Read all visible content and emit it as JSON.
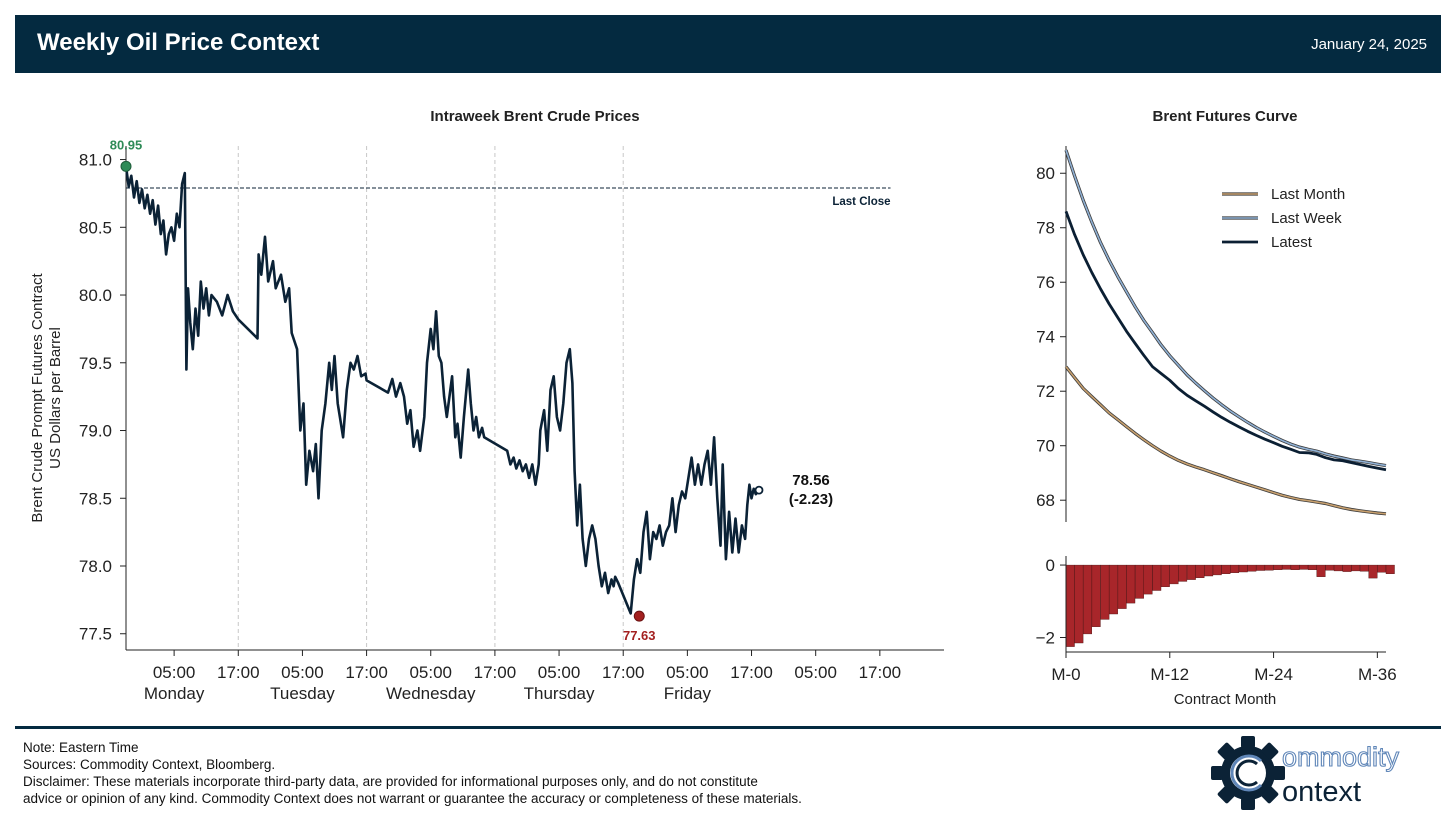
{
  "header": {
    "title": "Weekly Oil Price Context",
    "date": "January 24, 2025"
  },
  "chart_data": [
    {
      "type": "line",
      "title": "Intraweek Brent Crude Prices",
      "ylabel": [
        "Brent Crude Prompt Futures Contract",
        "US Dollars per Barrel"
      ],
      "ylim": [
        77.38,
        81.1
      ],
      "yticks": [
        81.0,
        80.5,
        80.0,
        79.5,
        79.0,
        78.5,
        78.0,
        77.5
      ],
      "ytick_labels": [
        "81.0",
        "80.5",
        "80.0",
        "79.5",
        "79.0",
        "78.5",
        "78.0",
        "77.5"
      ],
      "x_unit": "hours since Monday 00:00 ET",
      "xlim": [
        -4,
        149
      ],
      "xticks": [
        5,
        17,
        29,
        41,
        53,
        65,
        77,
        89,
        101,
        113,
        125,
        137
      ],
      "xtick_labels": [
        "05:00",
        "17:00",
        "05:00",
        "17:00",
        "05:00",
        "17:00",
        "05:00",
        "17:00",
        "05:00",
        "17:00",
        "05:00",
        "17:00"
      ],
      "day_labels": [
        {
          "x": 5,
          "label": "Monday"
        },
        {
          "x": 29,
          "label": "Tuesday"
        },
        {
          "x": 53,
          "label": "Wednesday"
        },
        {
          "x": 77,
          "label": "Thursday"
        },
        {
          "x": 101,
          "label": "Friday"
        }
      ],
      "day_dividers": [
        17,
        41,
        65,
        89
      ],
      "grid": "vertical dashed at 17:00",
      "last_close": {
        "value": 80.79,
        "label": "Last Close"
      },
      "high": {
        "x": -4,
        "value": 80.95,
        "label": "80.95",
        "color": "#2e8b57"
      },
      "low": {
        "x": 92,
        "value": 77.63,
        "label": "77.63",
        "color": "#a32020"
      },
      "latest": {
        "label_value": "78.56",
        "label_change": "(-2.23)"
      },
      "series": [
        {
          "color": "#0b2236",
          "points": [
            [
              -4,
              80.95
            ],
            [
              -3.5,
              80.8
            ],
            [
              -3,
              80.88
            ],
            [
              -2.5,
              80.72
            ],
            [
              -2,
              80.84
            ],
            [
              -1.5,
              80.68
            ],
            [
              -1,
              80.78
            ],
            [
              -0.5,
              80.64
            ],
            [
              0,
              80.74
            ],
            [
              0.5,
              80.6
            ],
            [
              1,
              80.7
            ],
            [
              1.5,
              80.52
            ],
            [
              2,
              80.66
            ],
            [
              2.5,
              80.45
            ],
            [
              3,
              80.55
            ],
            [
              3.5,
              80.3
            ],
            [
              4,
              80.45
            ],
            [
              4.5,
              80.5
            ],
            [
              5,
              80.4
            ],
            [
              5.5,
              80.6
            ],
            [
              6,
              80.5
            ],
            [
              6.5,
              80.82
            ],
            [
              7,
              80.9
            ],
            [
              7.3,
              79.45
            ],
            [
              7.6,
              80.05
            ],
            [
              8,
              79.8
            ],
            [
              8.5,
              79.6
            ],
            [
              9,
              79.9
            ],
            [
              9.5,
              79.7
            ],
            [
              10,
              80.1
            ],
            [
              10.5,
              79.9
            ],
            [
              11,
              80.05
            ],
            [
              11.5,
              79.85
            ],
            [
              12,
              80.0
            ],
            [
              13,
              79.95
            ],
            [
              14,
              79.85
            ],
            [
              15,
              80.0
            ],
            [
              16,
              79.88
            ],
            [
              17,
              79.82
            ],
            [
              20.6,
              79.68
            ],
            [
              20.8,
              80.3
            ],
            [
              21.3,
              80.15
            ],
            [
              22,
              80.43
            ],
            [
              22.6,
              80.1
            ],
            [
              23.5,
              80.25
            ],
            [
              24,
              80.05
            ],
            [
              25,
              80.15
            ],
            [
              25.8,
              79.95
            ],
            [
              26.5,
              80.05
            ],
            [
              27,
              79.72
            ],
            [
              28,
              79.6
            ],
            [
              28.6,
              79.0
            ],
            [
              29.2,
              79.2
            ],
            [
              29.7,
              78.6
            ],
            [
              30.3,
              78.85
            ],
            [
              31,
              78.7
            ],
            [
              31.5,
              78.9
            ],
            [
              32,
              78.5
            ],
            [
              32.6,
              79.0
            ],
            [
              33.3,
              79.2
            ],
            [
              34,
              79.5
            ],
            [
              34.5,
              79.3
            ],
            [
              35,
              79.55
            ],
            [
              35.6,
              79.2
            ],
            [
              36,
              79.1
            ],
            [
              36.6,
              78.95
            ],
            [
              37.3,
              79.3
            ],
            [
              38,
              79.5
            ],
            [
              38.6,
              79.45
            ],
            [
              39.3,
              79.55
            ],
            [
              40,
              79.4
            ],
            [
              40.8,
              79.42
            ],
            [
              41,
              79.37
            ],
            [
              45,
              79.28
            ],
            [
              45.8,
              79.38
            ],
            [
              46.5,
              79.25
            ],
            [
              47.3,
              79.35
            ],
            [
              48,
              79.25
            ],
            [
              48.6,
              79.05
            ],
            [
              49.2,
              79.15
            ],
            [
              49.8,
              78.88
            ],
            [
              50.5,
              79.0
            ],
            [
              51,
              78.85
            ],
            [
              51.8,
              79.1
            ],
            [
              52.3,
              79.5
            ],
            [
              53,
              79.75
            ],
            [
              53.5,
              79.6
            ],
            [
              54,
              79.88
            ],
            [
              54.5,
              79.55
            ],
            [
              55,
              79.5
            ],
            [
              55.5,
              79.25
            ],
            [
              56,
              79.1
            ],
            [
              57,
              79.4
            ],
            [
              57.6,
              78.95
            ],
            [
              58,
              79.05
            ],
            [
              58.6,
              78.8
            ],
            [
              59.2,
              79.1
            ],
            [
              60,
              79.45
            ],
            [
              60.5,
              79.2
            ],
            [
              61,
              79.0
            ],
            [
              61.5,
              79.1
            ],
            [
              62,
              78.95
            ],
            [
              62.6,
              79.02
            ],
            [
              63,
              78.95
            ],
            [
              67.3,
              78.85
            ],
            [
              67.9,
              78.75
            ],
            [
              68.5,
              78.8
            ],
            [
              69,
              78.72
            ],
            [
              69.6,
              78.78
            ],
            [
              70.2,
              78.7
            ],
            [
              70.8,
              78.75
            ],
            [
              71.4,
              78.65
            ],
            [
              72,
              78.75
            ],
            [
              72.6,
              78.6
            ],
            [
              73.2,
              78.75
            ],
            [
              73.5,
              79.0
            ],
            [
              74.2,
              79.15
            ],
            [
              74.8,
              78.85
            ],
            [
              75.4,
              79.3
            ],
            [
              76,
              79.4
            ],
            [
              76.6,
              79.1
            ],
            [
              77.2,
              79.0
            ],
            [
              77.8,
              79.2
            ],
            [
              78.4,
              79.5
            ],
            [
              79,
              79.6
            ],
            [
              79.5,
              79.35
            ],
            [
              79.9,
              78.7
            ],
            [
              80.4,
              78.3
            ],
            [
              80.9,
              78.6
            ],
            [
              81.4,
              78.2
            ],
            [
              82,
              78.0
            ],
            [
              82.6,
              78.2
            ],
            [
              83.2,
              78.3
            ],
            [
              83.8,
              78.2
            ],
            [
              84.4,
              78.0
            ],
            [
              85,
              77.85
            ],
            [
              85.6,
              77.95
            ],
            [
              86.2,
              77.8
            ],
            [
              86.8,
              77.9
            ],
            [
              87.2,
              77.85
            ],
            [
              87.5,
              77.92
            ],
            [
              88,
              77.88
            ],
            [
              90.4,
              77.65
            ],
            [
              91,
              77.9
            ],
            [
              91.6,
              78.05
            ],
            [
              92.2,
              77.95
            ],
            [
              92.8,
              78.25
            ],
            [
              93.4,
              78.4
            ],
            [
              94,
              78.05
            ],
            [
              94.6,
              78.25
            ],
            [
              95.2,
              78.2
            ],
            [
              95.8,
              78.3
            ],
            [
              96.4,
              78.15
            ],
            [
              97,
              78.25
            ],
            [
              97.6,
              78.3
            ],
            [
              98.2,
              78.5
            ],
            [
              98.8,
              78.25
            ],
            [
              99.4,
              78.45
            ],
            [
              100,
              78.55
            ],
            [
              100.6,
              78.5
            ],
            [
              101.2,
              78.65
            ],
            [
              101.8,
              78.8
            ],
            [
              102.4,
              78.6
            ],
            [
              103,
              78.75
            ],
            [
              103.6,
              78.6
            ],
            [
              104.2,
              78.75
            ],
            [
              104.8,
              78.85
            ],
            [
              105.4,
              78.6
            ],
            [
              106,
              78.95
            ],
            [
              106.6,
              78.5
            ],
            [
              107.2,
              78.15
            ],
            [
              107.6,
              78.75
            ],
            [
              108.2,
              78.05
            ],
            [
              108.8,
              78.4
            ],
            [
              109.4,
              78.1
            ],
            [
              110,
              78.35
            ],
            [
              110.6,
              78.1
            ],
            [
              111.2,
              78.3
            ],
            [
              111.8,
              78.2
            ],
            [
              112.2,
              78.45
            ],
            [
              112.6,
              78.6
            ],
            [
              113,
              78.5
            ],
            [
              113.4,
              78.57
            ],
            [
              113.8,
              78.53
            ],
            [
              114.4,
              78.56
            ]
          ]
        }
      ]
    },
    {
      "type": "line",
      "title": "Brent Futures Curve",
      "xlabel": "Contract Month",
      "xlim": [
        0,
        37
      ],
      "xticks": [
        0,
        12,
        24,
        36
      ],
      "xtick_labels": [
        "M-0",
        "M-12",
        "M-24",
        "M-36"
      ],
      "ylim": [
        67.2,
        81
      ],
      "yticks": [
        80,
        78,
        76,
        74,
        72,
        70,
        68
      ],
      "ytick_labels": [
        "80",
        "78",
        "76",
        "74",
        "72",
        "70",
        "68"
      ],
      "legend": "upper right",
      "series": [
        {
          "name": "Last Month",
          "color": "#c8a06e",
          "values": [
            72.9,
            72.5,
            72.1,
            71.8,
            71.5,
            71.2,
            70.95,
            70.7,
            70.45,
            70.22,
            70.0,
            69.8,
            69.62,
            69.46,
            69.33,
            69.22,
            69.12,
            69.01,
            68.9,
            68.79,
            68.68,
            68.58,
            68.48,
            68.38,
            68.28,
            68.18,
            68.1,
            68.03,
            67.98,
            67.93,
            67.88,
            67.8,
            67.72,
            67.66,
            67.61,
            67.57,
            67.53,
            67.5
          ]
        },
        {
          "name": "Last Week",
          "color": "#8fb0d4",
          "values": [
            80.85,
            79.9,
            79.0,
            78.2,
            77.45,
            76.8,
            76.2,
            75.65,
            75.1,
            74.6,
            74.15,
            73.7,
            73.3,
            72.95,
            72.6,
            72.3,
            72.02,
            71.75,
            71.5,
            71.27,
            71.06,
            70.86,
            70.67,
            70.5,
            70.34,
            70.19,
            70.06,
            69.95,
            69.87,
            69.8,
            69.7,
            69.62,
            69.55,
            69.48,
            69.43,
            69.38,
            69.32,
            69.27
          ]
        },
        {
          "name": "Latest",
          "color": "#0b1f33",
          "values": [
            78.6,
            77.75,
            77.0,
            76.35,
            75.75,
            75.2,
            74.7,
            74.2,
            73.75,
            73.32,
            72.9,
            72.65,
            72.4,
            72.1,
            71.85,
            71.65,
            71.45,
            71.24,
            71.04,
            70.86,
            70.69,
            70.53,
            70.38,
            70.24,
            70.11,
            69.98,
            69.87,
            69.75,
            69.74,
            69.68,
            69.56,
            69.48,
            69.45,
            69.38,
            69.31,
            69.24,
            69.18,
            69.12
          ]
        }
      ],
      "change_bars": {
        "type": "bar",
        "ylim": [
          -2.4,
          0.25
        ],
        "yticks": [
          0,
          -2
        ],
        "ytick_labels": [
          "0",
          "−2"
        ],
        "color": "#a8262a",
        "values": [
          -2.25,
          -2.15,
          -1.9,
          -1.7,
          -1.5,
          -1.35,
          -1.2,
          -1.05,
          -0.92,
          -0.8,
          -0.7,
          -0.6,
          -0.52,
          -0.45,
          -0.4,
          -0.35,
          -0.3,
          -0.27,
          -0.24,
          -0.21,
          -0.19,
          -0.17,
          -0.15,
          -0.14,
          -0.13,
          -0.12,
          -0.13,
          -0.12,
          -0.13,
          -0.32,
          -0.14,
          -0.16,
          -0.18,
          -0.16,
          -0.17,
          -0.36,
          -0.2,
          -0.24
        ]
      }
    }
  ],
  "footer": {
    "note": "Note: Eastern Time",
    "sources": "Sources: Commodity Context, Bloomberg.",
    "disclaimer_1": "Disclaimer: These materials incorporate third-party data, are provided for informational purposes only, and do not constitute",
    "disclaimer_2": "advice or opinion of any kind. Commodity Context does not warrant or guarantee the accuracy or completeness of these materials."
  },
  "logo": {
    "line1": "ommodity",
    "line2": "ontext",
    "text": "Commodity Context"
  }
}
